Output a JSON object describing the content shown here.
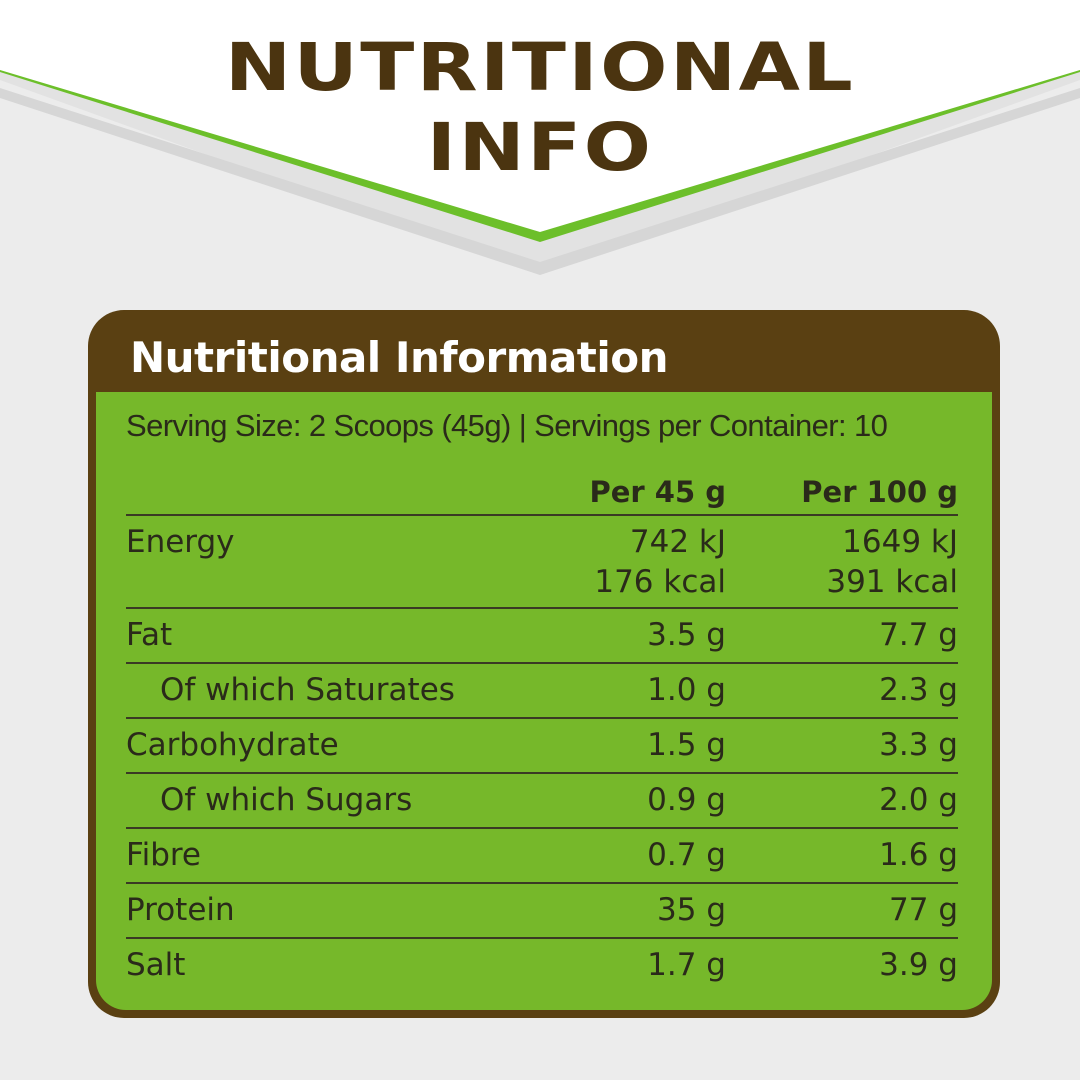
{
  "headline": {
    "line1": "NUTRITIONAL",
    "line2": "INFO"
  },
  "panel": {
    "title": "Nutritional Information",
    "serving": "Serving Size: 2 Scoops (45g) | Servings per Container: 10",
    "columns": [
      "Per 45 g",
      "Per 100 g"
    ],
    "rows": [
      {
        "label": "Energy",
        "per45": "742 kJ",
        "per45_b": "176 kcal",
        "per100": "1649 kJ",
        "per100_b": "391 kcal"
      },
      {
        "label": "Fat",
        "per45": "3.5 g",
        "per100": "7.7 g"
      },
      {
        "label": "Of which Saturates",
        "per45": "1.0 g",
        "per100": "2.3 g"
      },
      {
        "label": "Carbohydrate",
        "per45": "1.5 g",
        "per100": "3.3 g"
      },
      {
        "label": "Of which Sugars",
        "per45": "0.9 g",
        "per100": "2.0 g"
      },
      {
        "label": "Fibre",
        "per45": "0.7 g",
        "per100": "1.6 g"
      },
      {
        "label": "Protein",
        "per45": "35 g",
        "per100": "77 g"
      },
      {
        "label": "Salt",
        "per45": "1.7 g",
        "per100": "3.9 g"
      }
    ]
  },
  "colors": {
    "background": "#ececec",
    "headline_brown": "#4b3410",
    "panel_brown": "#5a4012",
    "panel_green": "#76b82a",
    "chevron_green": "#6cbf2a"
  }
}
